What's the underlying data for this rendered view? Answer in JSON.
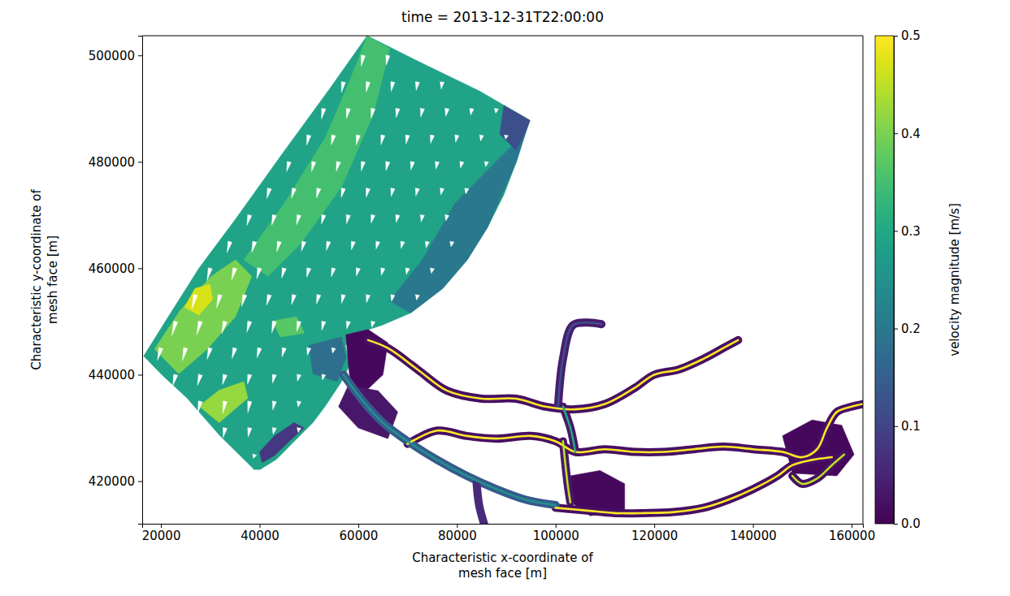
{
  "chart_data": {
    "type": "mesh_map",
    "title": "time = 2013-12-31T22:00:00",
    "x_label": "Characteristic x-coordinate of\nmesh face [m]",
    "y_label": "Characteristic y-coordinate of\nmesh face [m]",
    "xlim": [
      16200,
      162300
    ],
    "ylim": [
      412000,
      503700
    ],
    "xticks": [
      20000,
      40000,
      60000,
      80000,
      100000,
      120000,
      140000,
      160000
    ],
    "yticks": [
      420000,
      440000,
      460000,
      480000,
      500000
    ],
    "color": "viridis",
    "colorbar": {
      "label": "velocity magnitude [m/s]",
      "lim": [
        0,
        0.5
      ],
      "ticks": [
        {
          "value": 0,
          "label": "0.0"
        },
        {
          "value": 0.1,
          "label": "0.1"
        },
        {
          "value": 0.2,
          "label": "0.2"
        },
        {
          "value": 0.3,
          "label": "0.3"
        },
        {
          "value": 0.4,
          "label": "0.4"
        },
        {
          "value": 0.5,
          "label": "0.5"
        }
      ]
    },
    "cells": [
      {
        "x": [
          16500,
          21500,
          27700,
          35100,
          44500,
          54100,
          61800,
          73000,
          84600,
          94800,
          94100,
          92000,
          89500,
          86200,
          82100,
          77100,
          70600,
          64800,
          59800,
          57400,
          58200,
          56600,
          53300,
          50800,
          46700,
          43400,
          40100,
          38900,
          31800,
          25300,
          20300
        ],
        "y": [
          443500,
          450900,
          460000,
          469200,
          481400,
          493600,
          503700,
          498500,
          493300,
          487800,
          486000,
          479900,
          473800,
          467700,
          461600,
          456200,
          451600,
          449300,
          447800,
          445500,
          441700,
          438700,
          434100,
          431000,
          427200,
          424100,
          422200,
          422200,
          428700,
          435600,
          439900
        ],
        "value": 0.29
      },
      {
        "x": [
          36800,
          45000,
          53300,
          58200,
          61800,
          66400,
          63100,
          56600,
          48300,
          41700
        ],
        "y": [
          461600,
          472200,
          484500,
          495100,
          503700,
          501300,
          489000,
          475300,
          464600,
          458500
        ],
        "value": 0.35
      },
      {
        "x": [
          79600,
          87800,
          92800,
          94100,
          92000,
          86200,
          82100,
          77100,
          70600,
          66400,
          73000
        ],
        "y": [
          472200,
          479900,
          484500,
          486000,
          479900,
          467700,
          461600,
          456200,
          451600,
          453900,
          461600
        ],
        "value": 0.2
      },
      {
        "x": [
          89500,
          94800,
          94100,
          92000,
          88700
        ],
        "y": [
          490600,
          487800,
          486000,
          482200,
          485200
        ],
        "value": 0.12
      },
      {
        "x": [
          18700,
          23900,
          30200,
          35100,
          38400,
          35100,
          29400,
          23600
        ],
        "y": [
          444800,
          452100,
          458500,
          461600,
          458500,
          450900,
          444800,
          440200
        ],
        "value": 0.4
      },
      {
        "x": [
          24800,
          26900,
          29900,
          30500,
          27700
        ],
        "y": [
          452700,
          456200,
          457000,
          454200,
          451200
        ],
        "value": 0.47
      },
      {
        "x": [
          42600,
          47500,
          49100,
          44200
        ],
        "y": [
          450100,
          450900,
          447800,
          447100
        ],
        "value": 0.37
      },
      {
        "x": [
          50000,
          56600,
          57500,
          55700,
          50800
        ],
        "y": [
          445500,
          447100,
          443200,
          438700,
          440200
        ],
        "value": 0.18
      },
      {
        "x": [
          40500,
          43000,
          46000,
          49000,
          47000,
          43000,
          40000
        ],
        "y": [
          423500,
          424800,
          427500,
          430000,
          431000,
          428500,
          425500
        ],
        "value": 0.08
      },
      {
        "x": [
          27700,
          31800,
          36800,
          37600,
          31800
        ],
        "y": [
          434100,
          437100,
          438700,
          435600,
          431000
        ],
        "value": 0.42
      },
      {
        "x": [
          57500,
          62000,
          66000,
          65000,
          61000,
          58500,
          58000
        ],
        "y": [
          447500,
          448500,
          446000,
          440000,
          436500,
          437500,
          442000
        ],
        "value": 0.01
      },
      {
        "x": [
          58000,
          64000,
          68000,
          66000,
          60000,
          56000
        ],
        "y": [
          438000,
          437000,
          433000,
          428000,
          430000,
          434000
        ],
        "value": 0.03
      },
      {
        "x": [
          103000,
          109000,
          114000,
          114000,
          107000,
          102500
        ],
        "y": [
          421000,
          422000,
          419500,
          414500,
          413500,
          416500
        ],
        "value": 0.01
      },
      {
        "x": [
          146000,
          152000,
          158000,
          160500,
          157000,
          148000
        ],
        "y": [
          428500,
          431500,
          430500,
          425000,
          421000,
          421500
        ],
        "value": 0.01
      }
    ],
    "rivers": [
      {
        "x": [
          62000,
          66000,
          72000,
          78000,
          85000,
          92000,
          98000,
          104000,
          110000,
          116000,
          120000,
          125000,
          130000,
          134000,
          137000
        ],
        "y": [
          446500,
          445000,
          441000,
          437000,
          435500,
          435500,
          434000,
          433500,
          434500,
          437500,
          440000,
          441000,
          443000,
          445000,
          446500
        ],
        "value": 0.02,
        "core": 0.5
      },
      {
        "x": [
          100500,
          101500,
          103500,
          106500,
          109300
        ],
        "y": [
          434000,
          443000,
          449300,
          449800,
          449500
        ],
        "value": 0.04,
        "core": 0.12
      },
      {
        "x": [
          70000,
          76000,
          82000,
          88000,
          95000,
          100000,
          104000,
          110000,
          116000,
          122000,
          128000,
          134000,
          140000,
          146000,
          150000,
          153000,
          155000,
          157000,
          160000,
          162300
        ],
        "y": [
          427000,
          429500,
          428500,
          428000,
          428500,
          427500,
          425500,
          426000,
          425500,
          425500,
          426000,
          426500,
          426000,
          425500,
          424500,
          426000,
          430000,
          433000,
          434000,
          434500
        ],
        "value": 0.02,
        "core": 0.5
      },
      {
        "x": [
          104000,
          103000,
          101500
        ],
        "y": [
          425500,
          430000,
          434000
        ],
        "value": 0.03,
        "core": 0.3
      },
      {
        "x": [
          101500,
          102000,
          102500,
          103000
        ],
        "y": [
          427500,
          423000,
          419000,
          416000
        ],
        "value": 0.03,
        "core": 0.45
      },
      {
        "x": [
          100000,
          106000,
          112000,
          118000,
          124000,
          130000,
          135000,
          140000,
          145000,
          148000,
          152000,
          156000
        ],
        "y": [
          415000,
          414500,
          414000,
          414000,
          414200,
          415000,
          416500,
          418500,
          421000,
          423000,
          424000,
          424500
        ],
        "value": 0.02,
        "core": 0.5
      },
      {
        "x": [
          57000,
          61000,
          65000,
          70000,
          76000,
          82000,
          88000,
          94000,
          100000
        ],
        "y": [
          440000,
          435000,
          431000,
          427500,
          424000,
          421000,
          418500,
          416500,
          415500
        ],
        "value": 0.14,
        "core": 0.25
      },
      {
        "x": [
          84000,
          84500,
          85500
        ],
        "y": [
          419500,
          415500,
          412000
        ],
        "value": 0.06
      },
      {
        "x": [
          148000,
          150000,
          153000,
          156000,
          158500
        ],
        "y": [
          421000,
          419500,
          420500,
          423000,
          425000
        ],
        "value": 0.02,
        "core": 0.45
      }
    ],
    "arrows": {
      "x": [
        61000,
        66000,
        57000,
        62000,
        67000,
        72000,
        77000,
        53000,
        58000,
        63000,
        68000,
        73000,
        78000,
        83000,
        88000,
        50000,
        55000,
        60000,
        65000,
        70000,
        75000,
        80000,
        85000,
        90000,
        46000,
        51000,
        56000,
        61000,
        66000,
        71000,
        76000,
        81000,
        86000,
        42000,
        47000,
        52000,
        57000,
        62000,
        67000,
        72000,
        77000,
        82000,
        38000,
        43000,
        48000,
        53000,
        58000,
        63000,
        68000,
        73000,
        78000,
        34000,
        39000,
        44000,
        49000,
        54000,
        59000,
        64000,
        69000,
        74000,
        79000,
        30000,
        35000,
        40000,
        45000,
        50000,
        55000,
        60000,
        65000,
        70000,
        75000,
        27000,
        32000,
        37000,
        42000,
        47000,
        52000,
        57000,
        62000,
        67000,
        72000,
        23000,
        28000,
        33000,
        38000,
        43000,
        48000,
        53000,
        58000,
        63000,
        20000,
        25000,
        30000,
        35000,
        40000,
        45000,
        50000,
        55000,
        23000,
        28000,
        33000,
        38000,
        43000,
        48000,
        53000,
        28000,
        33000,
        38000,
        43000,
        48000,
        33000,
        38000,
        43000,
        48000,
        39000
      ],
      "y": [
        500000,
        500000,
        495000,
        495000,
        495000,
        495000,
        495000,
        490000,
        490000,
        490000,
        490000,
        490000,
        490000,
        490000,
        490000,
        485000,
        485000,
        485000,
        485000,
        485000,
        485000,
        485000,
        485000,
        485000,
        480000,
        480000,
        480000,
        480000,
        480000,
        480000,
        480000,
        480000,
        480000,
        475000,
        475000,
        475000,
        475000,
        475000,
        475000,
        475000,
        475000,
        475000,
        470000,
        470000,
        470000,
        470000,
        470000,
        470000,
        470000,
        470000,
        470000,
        465000,
        465000,
        465000,
        465000,
        465000,
        465000,
        465000,
        465000,
        465000,
        465000,
        460000,
        460000,
        460000,
        460000,
        460000,
        460000,
        460000,
        460000,
        460000,
        460000,
        455000,
        455000,
        455000,
        455000,
        455000,
        455000,
        455000,
        455000,
        455000,
        455000,
        450000,
        450000,
        450000,
        450000,
        450000,
        450000,
        450000,
        450000,
        450000,
        445000,
        445000,
        445000,
        445000,
        445000,
        445000,
        445000,
        445000,
        440000,
        440000,
        440000,
        440000,
        440000,
        440000,
        440000,
        435000,
        435000,
        435000,
        435000,
        435000,
        430000,
        430000,
        430000,
        430000,
        425000
      ],
      "u": [
        -0.06,
        -0.05,
        -0.06,
        -0.06,
        -0.05,
        -0.04,
        -0.03,
        -0.07,
        -0.06,
        -0.06,
        -0.05,
        -0.05,
        -0.04,
        -0.03,
        -0.02,
        -0.07,
        -0.07,
        -0.06,
        -0.06,
        -0.05,
        -0.05,
        -0.04,
        -0.03,
        -0.02,
        -0.08,
        -0.07,
        -0.07,
        -0.06,
        -0.06,
        -0.05,
        -0.04,
        -0.04,
        -0.03,
        -0.08,
        -0.08,
        -0.07,
        -0.07,
        -0.06,
        -0.05,
        -0.05,
        -0.04,
        -0.03,
        -0.09,
        -0.08,
        -0.08,
        -0.07,
        -0.06,
        -0.06,
        -0.05,
        -0.04,
        -0.04,
        -0.09,
        -0.09,
        -0.08,
        -0.08,
        -0.07,
        -0.06,
        -0.06,
        -0.05,
        -0.04,
        -0.03,
        -0.1,
        -0.1,
        -0.09,
        -0.08,
        -0.07,
        -0.07,
        -0.06,
        -0.05,
        -0.04,
        -0.03,
        -0.11,
        -0.11,
        -0.1,
        -0.09,
        -0.08,
        -0.07,
        -0.06,
        -0.05,
        -0.04,
        -0.03,
        -0.12,
        -0.11,
        -0.1,
        -0.09,
        -0.08,
        -0.07,
        -0.06,
        -0.05,
        -0.04,
        -0.11,
        -0.1,
        -0.1,
        -0.09,
        -0.08,
        -0.07,
        -0.05,
        -0.03,
        -0.09,
        -0.09,
        -0.08,
        -0.07,
        -0.06,
        -0.05,
        -0.04,
        -0.08,
        -0.07,
        -0.06,
        -0.05,
        -0.03,
        -0.06,
        -0.05,
        -0.04,
        -0.03,
        -0.04
      ],
      "v": [
        -0.33,
        -0.3,
        -0.32,
        -0.31,
        -0.29,
        -0.26,
        -0.22,
        -0.32,
        -0.31,
        -0.3,
        -0.28,
        -0.26,
        -0.24,
        -0.2,
        -0.14,
        -0.31,
        -0.3,
        -0.3,
        -0.29,
        -0.27,
        -0.25,
        -0.22,
        -0.18,
        -0.12,
        -0.3,
        -0.3,
        -0.29,
        -0.28,
        -0.27,
        -0.25,
        -0.22,
        -0.19,
        -0.15,
        -0.31,
        -0.3,
        -0.29,
        -0.28,
        -0.27,
        -0.25,
        -0.23,
        -0.2,
        -0.17,
        -0.32,
        -0.31,
        -0.3,
        -0.28,
        -0.27,
        -0.25,
        -0.23,
        -0.21,
        -0.18,
        -0.34,
        -0.33,
        -0.31,
        -0.29,
        -0.27,
        -0.25,
        -0.23,
        -0.21,
        -0.19,
        -0.16,
        -0.38,
        -0.36,
        -0.33,
        -0.3,
        -0.28,
        -0.26,
        -0.24,
        -0.22,
        -0.19,
        -0.16,
        -0.43,
        -0.4,
        -0.36,
        -0.32,
        -0.3,
        -0.28,
        -0.26,
        -0.24,
        -0.2,
        -0.16,
        -0.44,
        -0.41,
        -0.37,
        -0.33,
        -0.35,
        -0.31,
        -0.27,
        -0.23,
        -0.18,
        -0.38,
        -0.39,
        -0.35,
        -0.32,
        -0.3,
        -0.27,
        -0.22,
        -0.16,
        -0.34,
        -0.33,
        -0.31,
        -0.29,
        -0.26,
        -0.2,
        -0.16,
        -0.36,
        -0.38,
        -0.35,
        -0.27,
        -0.18,
        -0.3,
        -0.28,
        -0.2,
        -0.14,
        -0.12
      ]
    }
  }
}
